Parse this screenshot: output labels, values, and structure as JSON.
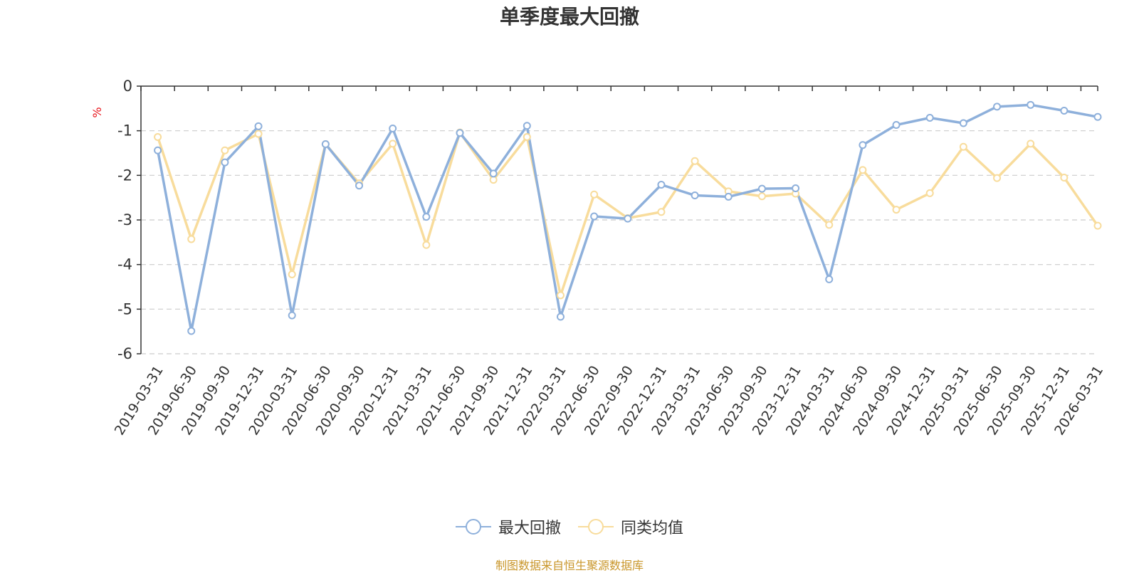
{
  "chart_data": {
    "type": "line",
    "title": "单季度最大回撤",
    "ylabel": "%",
    "ylim": [
      -6,
      0
    ],
    "yticks": [
      0,
      -1,
      -2,
      -3,
      -4,
      -5,
      -6
    ],
    "grid": true,
    "legend_position": "bottom-center",
    "categories": [
      "2019-03-31",
      "2019-06-30",
      "2019-09-30",
      "2019-12-31",
      "2020-03-31",
      "2020-06-30",
      "2020-09-30",
      "2020-12-31",
      "2021-03-31",
      "2021-06-30",
      "2021-09-30",
      "2021-12-31",
      "2022-03-31",
      "2022-06-30",
      "2022-09-30",
      "2022-12-31",
      "2023-03-31",
      "2023-06-30",
      "2023-09-30",
      "2023-12-31",
      "2024-03-31",
      "2024-06-30",
      "2024-09-30",
      "2024-12-31",
      "2025-03-31",
      "2025-06-30",
      "2025-09-30",
      "2025-12-31",
      "2026-03-31"
    ],
    "series": [
      {
        "name": "最大回撤",
        "color": "#8eb0db",
        "values": [
          -1.44,
          -5.49,
          -1.71,
          -0.9,
          -5.14,
          -1.3,
          -2.23,
          -0.95,
          -2.93,
          -1.05,
          -1.96,
          -0.89,
          -5.17,
          -2.92,
          -2.97,
          -2.21,
          -2.45,
          -2.48,
          -2.3,
          -2.29,
          -4.33,
          -1.32,
          -0.87,
          -0.71,
          -0.83,
          -0.46,
          -0.42,
          -0.55,
          -0.69
        ]
      },
      {
        "name": "同类均值",
        "color": "#f8dc9c",
        "values": [
          -1.14,
          -3.43,
          -1.44,
          -1.07,
          -4.22,
          -1.3,
          -2.18,
          -1.29,
          -3.56,
          -1.04,
          -2.1,
          -1.14,
          -4.69,
          -2.43,
          -2.96,
          -2.82,
          -1.68,
          -2.36,
          -2.47,
          -2.41,
          -3.11,
          -1.88,
          -2.77,
          -2.4,
          -1.36,
          -2.06,
          -1.29,
          -2.05,
          -3.13
        ]
      }
    ]
  },
  "source_note": "制图数据来自恒生聚源数据库",
  "colors": {
    "axis": "#333333",
    "grid": "#cccccc",
    "ylabel": "#e8141b",
    "source": "#c9962a"
  }
}
